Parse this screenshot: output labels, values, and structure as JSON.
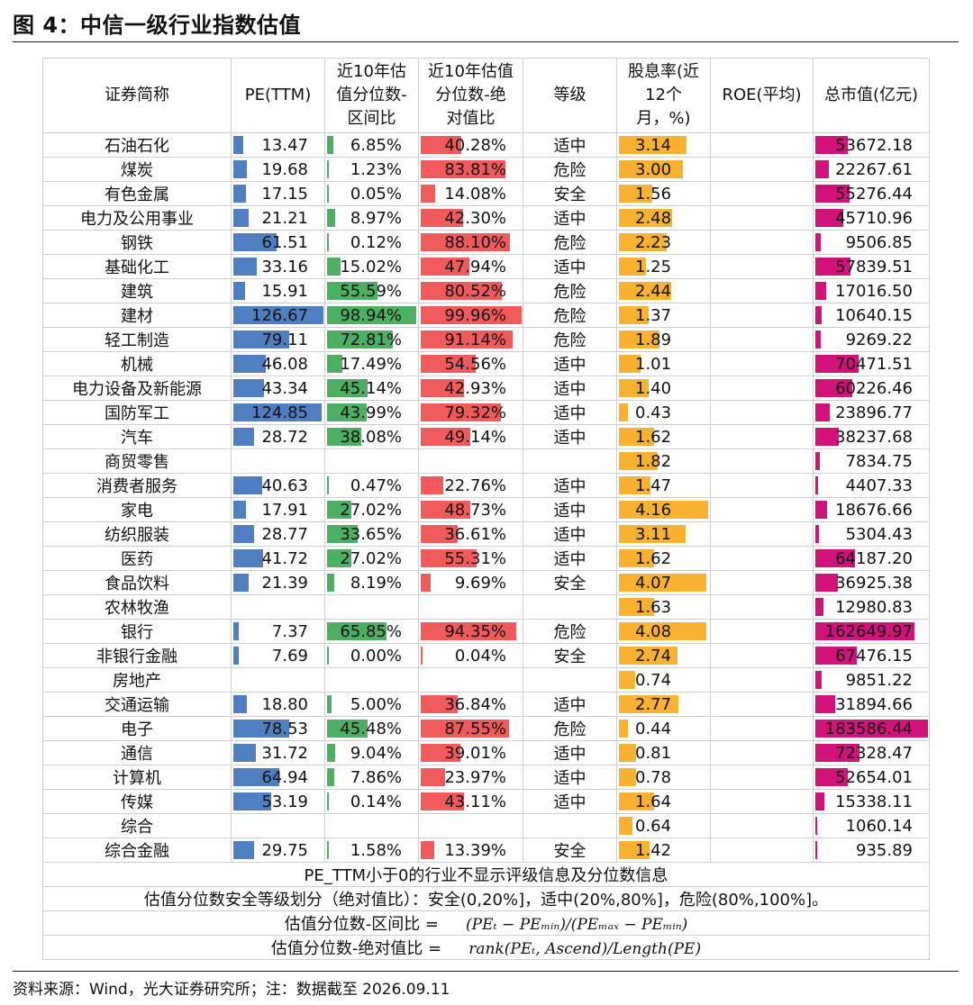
{
  "title": "图 4：中信一级行业指数估值",
  "source": "资料来源：Wind，光大证券研究所；注：数据截至 2026.09.11",
  "colors": {
    "pe": "#4f7fc0",
    "interval": "#4caf62",
    "absolute": "#f15a5a",
    "dividend": "#f8b231",
    "mcap": "#d1127a"
  },
  "headers": {
    "name": "证券简称",
    "pe": "PE(TTM)",
    "interval_l1": "近10年估",
    "interval_l2": "值分位数-",
    "interval_l3": "区间比",
    "absolute_l1": "近10年估值",
    "absolute_l2": "分位数-绝",
    "absolute_l3": "对值比",
    "grade": "等级",
    "div_l1": "股息率(近",
    "div_l2": "12个",
    "div_l3": "月，%)",
    "roe": "ROE(平均)",
    "mcap": "总市值(亿元)"
  },
  "rows": [
    {
      "name": "石油石化",
      "pe": "13.47",
      "interval": "6.85%",
      "absolute": "40.28%",
      "grade": "适中",
      "dividend": "3.14",
      "roe": "",
      "mcap": "53672.18"
    },
    {
      "name": "煤炭",
      "pe": "19.68",
      "interval": "1.23%",
      "absolute": "83.81%",
      "grade": "危险",
      "dividend": "3.00",
      "roe": "",
      "mcap": "22267.61"
    },
    {
      "name": "有色金属",
      "pe": "17.15",
      "interval": "0.05%",
      "absolute": "14.08%",
      "grade": "安全",
      "dividend": "1.56",
      "roe": "",
      "mcap": "55276.44"
    },
    {
      "name": "电力及公用事业",
      "pe": "21.21",
      "interval": "8.97%",
      "absolute": "42.30%",
      "grade": "适中",
      "dividend": "2.48",
      "roe": "",
      "mcap": "45710.96"
    },
    {
      "name": "钢铁",
      "pe": "61.51",
      "interval": "0.12%",
      "absolute": "88.10%",
      "grade": "危险",
      "dividend": "2.23",
      "roe": "",
      "mcap": "9506.85"
    },
    {
      "name": "基础化工",
      "pe": "33.16",
      "interval": "15.02%",
      "absolute": "47.94%",
      "grade": "适中",
      "dividend": "1.25",
      "roe": "",
      "mcap": "57839.51"
    },
    {
      "name": "建筑",
      "pe": "15.91",
      "interval": "55.59%",
      "absolute": "80.52%",
      "grade": "危险",
      "dividend": "2.44",
      "roe": "",
      "mcap": "17016.50"
    },
    {
      "name": "建材",
      "pe": "126.67",
      "interval": "98.94%",
      "absolute": "99.96%",
      "grade": "危险",
      "dividend": "1.37",
      "roe": "",
      "mcap": "10640.15"
    },
    {
      "name": "轻工制造",
      "pe": "79.11",
      "interval": "72.81%",
      "absolute": "91.14%",
      "grade": "危险",
      "dividend": "1.89",
      "roe": "",
      "mcap": "9269.22"
    },
    {
      "name": "机械",
      "pe": "46.08",
      "interval": "17.49%",
      "absolute": "54.56%",
      "grade": "适中",
      "dividend": "1.01",
      "roe": "",
      "mcap": "70471.51"
    },
    {
      "name": "电力设备及新能源",
      "pe": "43.34",
      "interval": "45.14%",
      "absolute": "42.93%",
      "grade": "适中",
      "dividend": "1.40",
      "roe": "",
      "mcap": "60226.46"
    },
    {
      "name": "国防军工",
      "pe": "124.85",
      "interval": "43.99%",
      "absolute": "79.32%",
      "grade": "适中",
      "dividend": "0.43",
      "roe": "",
      "mcap": "23896.77"
    },
    {
      "name": "汽车",
      "pe": "28.72",
      "interval": "38.08%",
      "absolute": "49.14%",
      "grade": "适中",
      "dividend": "1.62",
      "roe": "",
      "mcap": "38237.68"
    },
    {
      "name": "商贸零售",
      "pe": "",
      "interval": "",
      "absolute": "",
      "grade": "",
      "dividend": "1.82",
      "roe": "",
      "mcap": "7834.75"
    },
    {
      "name": "消费者服务",
      "pe": "40.63",
      "interval": "0.47%",
      "absolute": "22.76%",
      "grade": "适中",
      "dividend": "1.47",
      "roe": "",
      "mcap": "4407.33"
    },
    {
      "name": "家电",
      "pe": "17.91",
      "interval": "27.02%",
      "absolute": "48.73%",
      "grade": "适中",
      "dividend": "4.16",
      "roe": "",
      "mcap": "18676.66"
    },
    {
      "name": "纺织服装",
      "pe": "28.77",
      "interval": "33.65%",
      "absolute": "36.61%",
      "grade": "适中",
      "dividend": "3.11",
      "roe": "",
      "mcap": "5304.43"
    },
    {
      "name": "医药",
      "pe": "41.72",
      "interval": "27.02%",
      "absolute": "55.31%",
      "grade": "适中",
      "dividend": "1.62",
      "roe": "",
      "mcap": "64187.20"
    },
    {
      "name": "食品饮料",
      "pe": "21.39",
      "interval": "8.19%",
      "absolute": "9.69%",
      "grade": "安全",
      "dividend": "4.07",
      "roe": "",
      "mcap": "36925.38"
    },
    {
      "name": "农林牧渔",
      "pe": "",
      "interval": "",
      "absolute": "",
      "grade": "",
      "dividend": "1.63",
      "roe": "",
      "mcap": "12980.83"
    },
    {
      "name": "银行",
      "pe": "7.37",
      "interval": "65.85%",
      "absolute": "94.35%",
      "grade": "危险",
      "dividend": "4.08",
      "roe": "",
      "mcap": "162649.97"
    },
    {
      "name": "非银行金融",
      "pe": "7.69",
      "interval": "0.00%",
      "absolute": "0.04%",
      "grade": "安全",
      "dividend": "2.74",
      "roe": "",
      "mcap": "67476.15"
    },
    {
      "name": "房地产",
      "pe": "",
      "interval": "",
      "absolute": "",
      "grade": "",
      "dividend": "0.74",
      "roe": "",
      "mcap": "9851.22"
    },
    {
      "name": "交通运输",
      "pe": "18.80",
      "interval": "5.00%",
      "absolute": "36.84%",
      "grade": "适中",
      "dividend": "2.77",
      "roe": "",
      "mcap": "31894.66"
    },
    {
      "name": "电子",
      "pe": "78.53",
      "interval": "45.48%",
      "absolute": "87.55%",
      "grade": "危险",
      "dividend": "0.44",
      "roe": "",
      "mcap": "183586.44"
    },
    {
      "name": "通信",
      "pe": "31.72",
      "interval": "9.04%",
      "absolute": "39.01%",
      "grade": "适中",
      "dividend": "0.81",
      "roe": "",
      "mcap": "72328.47"
    },
    {
      "name": "计算机",
      "pe": "64.94",
      "interval": "7.86%",
      "absolute": "23.97%",
      "grade": "适中",
      "dividend": "0.78",
      "roe": "",
      "mcap": "52654.01"
    },
    {
      "name": "传媒",
      "pe": "53.19",
      "interval": "0.14%",
      "absolute": "43.11%",
      "grade": "适中",
      "dividend": "1.64",
      "roe": "",
      "mcap": "15338.11"
    },
    {
      "name": "综合",
      "pe": "",
      "interval": "",
      "absolute": "",
      "grade": "",
      "dividend": "0.64",
      "roe": "",
      "mcap": "1060.14"
    },
    {
      "name": "综合金融",
      "pe": "29.75",
      "interval": "1.58%",
      "absolute": "13.39%",
      "grade": "安全",
      "dividend": "1.42",
      "roe": "",
      "mcap": "935.89"
    }
  ],
  "notes": {
    "n1": "PE_TTM小于0的行业不显示评级信息及分位数信息",
    "n2": "估值分位数安全等级划分（绝对值比）：安全(0,20%]，适中(20%,80%]，危险(80%,100%]。",
    "n3_label": "估值分位数-区间比 =",
    "n3_formula": "(PEₜ − PEₘᵢₙ)/(PEₘₐₓ − PEₘᵢₙ)",
    "n4_label": "估值分位数-绝对值比 =",
    "n4_formula": "rank(PEₜ, Ascend)/Length(PE)"
  }
}
